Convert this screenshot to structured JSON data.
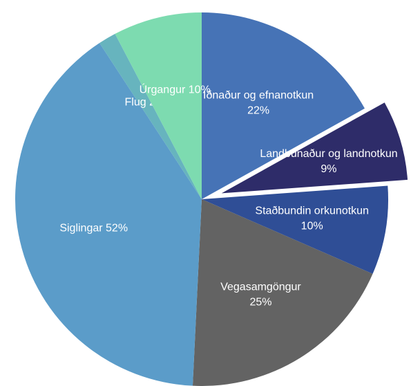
{
  "chart_data": {
    "type": "pie",
    "categories": [
      "Iðnaður og efnanotkun",
      "Landbúnaður og landnotkun",
      "Staðbundin orkunotkun",
      "Vegasamgöngur",
      "Siglingar",
      "Flug",
      "Úrgangur"
    ],
    "values": [
      22,
      9,
      10,
      25,
      52,
      2,
      10
    ],
    "value_labels": [
      "22%",
      "9%",
      "10%",
      "25%",
      "52%",
      "2%",
      "10%"
    ],
    "colors": [
      "#4673b6",
      "#2e2c69",
      "#2f4e96",
      "#636363",
      "#5b9cc9",
      "#67b4be",
      "#7ddbb0"
    ],
    "exploded_category": "Landbúnaður og landnotkun"
  }
}
